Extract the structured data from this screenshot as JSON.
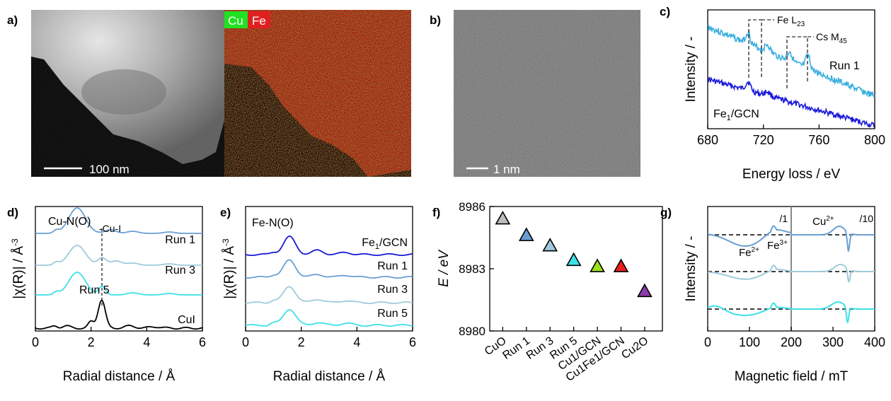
{
  "panels": {
    "a": {
      "letter": "a)",
      "scale_label": "100 nm",
      "map_labels": [
        "Cu",
        "Fe"
      ],
      "map_colors": {
        "Cu": "#22e022",
        "Fe": "#e02020"
      }
    },
    "b": {
      "letter": "b)",
      "scale_label": "1 nm"
    },
    "c": {
      "letter": "c)",
      "ylabel": "Intensity / -",
      "xlabel": "Energy loss / eV",
      "xticks": [
        "680",
        "720",
        "760",
        "800"
      ],
      "xlim": [
        680,
        800
      ],
      "ann_fe": "Fe L",
      "ann_fe_sub": "23",
      "ann_cs": "Cs M",
      "ann_cs_sub": "45",
      "series": [
        {
          "name": "Run 1",
          "color": "#3aaee0"
        },
        {
          "name": "Fe",
          "name_sub": "1",
          "name_tail": "/GCN",
          "color": "#1818d8"
        }
      ]
    },
    "d": {
      "letter": "d)",
      "ylabel": "|χ(R)| / Å",
      "ylabel_sup": "-3",
      "xlabel": "Radial distance / Å",
      "xticks": [
        "0",
        "2",
        "4",
        "6"
      ],
      "xlim": [
        0,
        6
      ],
      "ann_main": "Cu-N(O)",
      "ann_cui": "-Cu-I",
      "series": [
        {
          "name": "Run 1",
          "color": "#6a9fd4"
        },
        {
          "name": "Run 3",
          "color": "#9fcadb"
        },
        {
          "name": "Run 5",
          "color": "#3de0e8"
        },
        {
          "name": "CuI",
          "color": "#000000"
        }
      ]
    },
    "e": {
      "letter": "e)",
      "ylabel": "|χ(R)| / Å",
      "ylabel_sup": "-3",
      "xlabel": "Radial distance / Å",
      "xticks": [
        "0",
        "2",
        "4",
        "6"
      ],
      "xlim": [
        0,
        6
      ],
      "ann_main": "Fe-N(O)",
      "series": [
        {
          "name": "Fe",
          "name_sub": "1",
          "name_tail": "/GCN",
          "color": "#1818d8"
        },
        {
          "name": "Run 1",
          "color": "#6a9fd4"
        },
        {
          "name": "Run 3",
          "color": "#9fcadb"
        },
        {
          "name": "Run 5",
          "color": "#3de0e8"
        }
      ]
    },
    "g": {
      "letter": "g)",
      "ylabel": "Intensity / -",
      "xlabel": "Magnetic field / mT",
      "xticks": [
        "0",
        "100",
        "200",
        "300",
        "400"
      ],
      "xlim": [
        0,
        400
      ],
      "scale_left": "/1",
      "scale_right": "/10",
      "ann_cu": "Cu",
      "ann_cu_sup": "2+",
      "ann_fe2": "Fe",
      "ann_fe2_sup": "2+",
      "ann_fe3": "Fe",
      "ann_fe3_sup": "3+",
      "series_colors": [
        "#6a9fd4",
        "#9fcadb",
        "#3de0e8"
      ]
    }
  },
  "chart_data": {
    "type": "scatter",
    "panel": "f)",
    "ylabel": "E / eV",
    "ylim": [
      8980,
      8986
    ],
    "yticks": [
      "8980",
      "8983",
      "8986"
    ],
    "categories": [
      "CuO",
      "Run 1",
      "Run 3",
      "Run 5",
      "Cu1/GCN",
      "Cu1Fe1/GCN",
      "Cu2O"
    ],
    "values": [
      8985.4,
      8984.6,
      8984.1,
      8983.4,
      8983.1,
      8983.1,
      8981.9
    ],
    "colors": [
      "#bdbdbd",
      "#6a9fd4",
      "#9fcadb",
      "#3de0e8",
      "#9be21e",
      "#ee1c1c",
      "#8a3ca8"
    ],
    "marker": "triangle-up"
  }
}
